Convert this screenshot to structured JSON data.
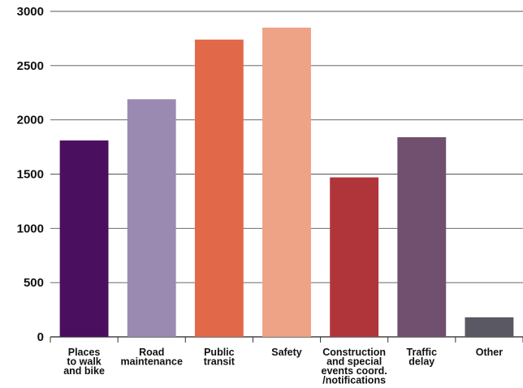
{
  "chart_data": {
    "type": "bar",
    "title": "",
    "xlabel": "",
    "ylabel": "",
    "ylim": [
      0,
      3000
    ],
    "yticks": [
      0,
      500,
      1000,
      1500,
      2000,
      2500,
      3000
    ],
    "ytick_labels": [
      "0",
      "500",
      "1000",
      "1500",
      "2000",
      "2500",
      "3000"
    ],
    "grid": true,
    "legend": "none",
    "categories": [
      [
        "Places",
        "to walk",
        "and bike"
      ],
      [
        "Road",
        "maintenance"
      ],
      [
        "Public",
        "transit"
      ],
      [
        "Safety"
      ],
      [
        "Construction",
        "and special",
        "events coord.",
        "/notifications"
      ],
      [
        "Traffic",
        "delay"
      ],
      [
        "Other"
      ]
    ],
    "values": [
      1810,
      2190,
      2740,
      2850,
      1470,
      1840,
      180
    ],
    "colors": [
      "#4a0f5e",
      "#9a89b0",
      "#e2684a",
      "#eea286",
      "#b0353a",
      "#70506e",
      "#5a5862"
    ]
  }
}
